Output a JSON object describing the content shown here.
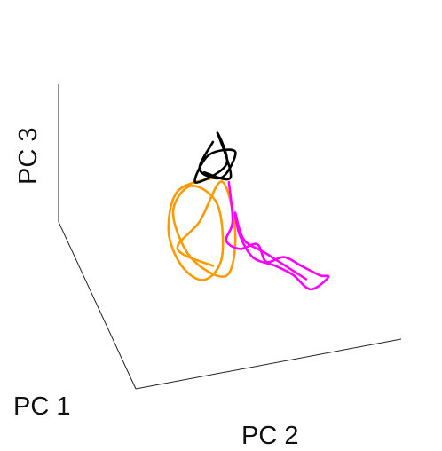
{
  "chart_data": {
    "type": "line3d",
    "xlabel": "PC 1",
    "ylabel": "PC 2",
    "zlabel": "PC 3",
    "xlim": [
      0,
      1
    ],
    "ylim": [
      0,
      1
    ],
    "zlim": [
      0,
      1
    ],
    "series": [
      {
        "color": "#ff9900",
        "x": [
          0.5,
          0.5,
          0.5,
          0.5,
          0.5,
          0.5,
          0.5,
          0.5,
          0.5,
          0.5,
          0.5,
          0.5,
          0.5,
          0.5,
          0.5,
          0.5
        ],
        "y": [
          0.436,
          0.303,
          0.269,
          0.319,
          0.403,
          0.47,
          0.453,
          0.353,
          0.286,
          0.353,
          0.487,
          0.52,
          0.47,
          0.386,
          0.303,
          0.436
        ],
        "z": [
          0.77,
          0.72,
          0.44,
          0.17,
          0.04,
          0.18,
          0.57,
          0.74,
          0.57,
          0.22,
          0.04,
          0.35,
          0.73,
          0.47,
          0.3,
          0.13
        ]
      },
      {
        "color": "#ff00ff",
        "x": [
          0.3,
          0.3,
          0.3,
          0.3,
          0.3,
          0.3,
          0.3,
          0.3,
          0.3,
          0.3,
          0.3,
          0.3,
          0.3,
          0.3,
          0.3,
          0.3,
          0.3,
          0.3,
          0.3
        ],
        "y": [
          0.438,
          0.452,
          0.428,
          0.479,
          0.545,
          0.579,
          0.646,
          0.713,
          0.78,
          0.813,
          0.746,
          0.679,
          0.612,
          0.529,
          0.479,
          0.462,
          0.495,
          0.579,
          0.729
        ],
        "z": [
          0.98,
          0.69,
          0.56,
          0.48,
          0.49,
          0.35,
          0.36,
          0.27,
          0.18,
          0.155,
          0.09,
          0.22,
          0.31,
          0.4,
          0.58,
          0.75,
          0.54,
          0.41,
          0.17
        ]
      },
      {
        "color": "#000000",
        "x": [
          0.5,
          0.5,
          0.5,
          0.5,
          0.5,
          0.5,
          0.5,
          0.5,
          0.5,
          0.5
        ],
        "y": [
          0.436,
          0.386,
          0.47,
          0.52,
          0.42,
          0.37,
          0.487,
          0.453,
          0.503,
          0.403
        ],
        "z": [
          1.03,
          0.85,
          0.76,
          0.93,
          0.94,
          0.76,
          0.85,
          1.09,
          0.75,
          0.82
        ]
      }
    ]
  }
}
